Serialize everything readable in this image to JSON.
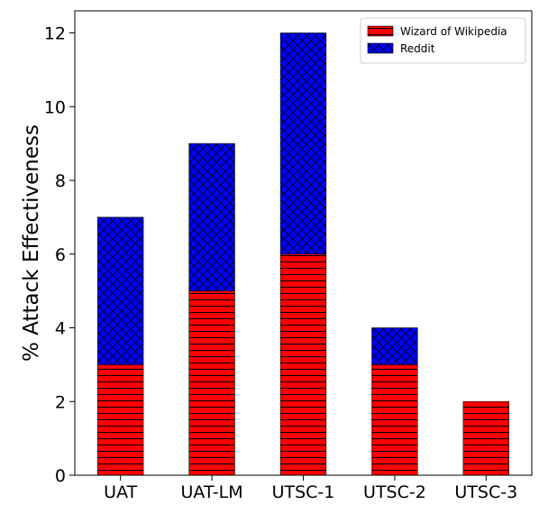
{
  "chart_data": {
    "type": "bar",
    "stacked": true,
    "categories": [
      "UAT",
      "UAT-LM",
      "UTSC-1",
      "UTSC-2",
      "UTSC-3"
    ],
    "series": [
      {
        "name": "Wizard of Wikipedia",
        "values": [
          3,
          5,
          6,
          3,
          2
        ],
        "color": "#ff0000",
        "hatch": "horizontal-lines"
      },
      {
        "name": "Reddit",
        "values": [
          4,
          4,
          6,
          1,
          0
        ],
        "color": "#0000ff",
        "hatch": "crosshatch-diagonal"
      }
    ],
    "ylabel": "% Attack Effectiveness",
    "xlabel": "",
    "ylim": [
      0,
      12.6
    ],
    "yticks": [
      0,
      2,
      4,
      6,
      8,
      10,
      12
    ],
    "grid": false,
    "legend_position": "top-right"
  }
}
